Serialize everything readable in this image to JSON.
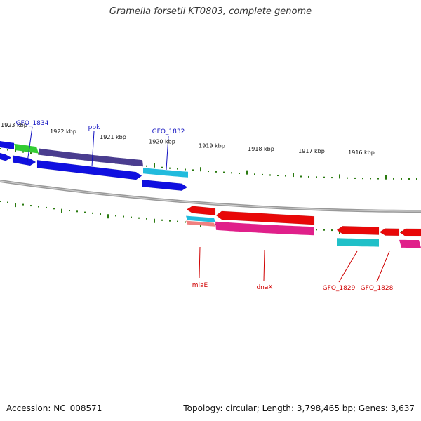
{
  "title": "Gramella forsetii KT0803, complete genome",
  "footer": {
    "accession": "Accession: NC_008571",
    "summary": "Topology: circular; Length: 3,798,465 bp; Genes: 3,637"
  },
  "ruler_labels": [
    "1923 kbp",
    "1922 kbp",
    "1921 kbp",
    "1920 kbp",
    "1919 kbp",
    "1918 kbp",
    "1917 kbp",
    "1916 kbp"
  ],
  "forward_gene_labels": [
    "GFO_1834",
    "ppk",
    "GFO_1832"
  ],
  "reverse_gene_labels": [
    "miaE",
    "dnaX",
    "GFO_1829",
    "GFO_1828"
  ],
  "colors": {
    "forward_gene": "#1010e0",
    "reverse_gene": "#e80808",
    "forward_label": "#1010c0",
    "reverse_label": "#d00000",
    "tick": "#2a7a10",
    "backbone": "#888888",
    "cog_purple": "#4a3d8f",
    "cog_green": "#33cc33",
    "cog_cyan": "#22bbdd",
    "cog_magenta": "#e0208a",
    "cog_teal": "#20c0c8",
    "cog_salmon": "#f08080"
  }
}
